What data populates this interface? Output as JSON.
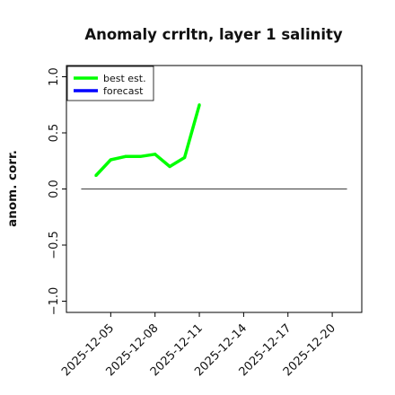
{
  "chart_data": {
    "type": "line",
    "title": "Anomaly crrltn, layer 1 salinity",
    "xlabel": "",
    "ylabel": "anom. corr.",
    "xlim": [
      "2025-12-02",
      "2025-12-22"
    ],
    "ylim": [
      -1.1,
      1.1
    ],
    "x_ticks": [
      "2025-12-05",
      "2025-12-08",
      "2025-12-11",
      "2025-12-14",
      "2025-12-17",
      "2025-12-20"
    ],
    "highlight_tick": "2025-12-11",
    "highlight_color": "#007f00",
    "y_ticks": [
      -1.0,
      -0.5,
      0.0,
      0.5,
      1.0
    ],
    "y_tick_labels": [
      "−1.0",
      "−0.5",
      "0.0",
      "0.5",
      "1.0"
    ],
    "zero_line": {
      "from": "2025-12-03",
      "to": "2025-12-21",
      "color": "#555555"
    },
    "series": [
      {
        "name": "best est.",
        "color": "#00ff00",
        "x": [
          "2025-12-04",
          "2025-12-05",
          "2025-12-06",
          "2025-12-07",
          "2025-12-08",
          "2025-12-09",
          "2025-12-10",
          "2025-12-11"
        ],
        "y": [
          0.12,
          0.26,
          0.29,
          0.29,
          0.31,
          0.2,
          0.28,
          0.75
        ]
      },
      {
        "name": "forecast",
        "color": "#0000ff",
        "x": [],
        "y": []
      }
    ],
    "legend_position": "top-left",
    "grid": false
  }
}
